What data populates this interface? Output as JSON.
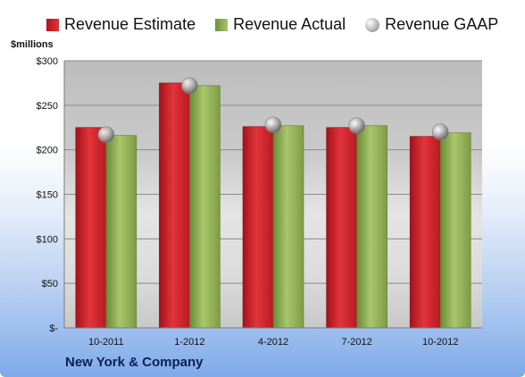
{
  "chart_data": {
    "type": "bar",
    "categories": [
      "10-2011",
      "1-2012",
      "4-2012",
      "7-2012",
      "10-2012"
    ],
    "series": [
      {
        "name": "Revenue Estimate",
        "kind": "bar",
        "color": "#c9222a",
        "values": [
          225,
          275,
          226,
          225,
          215
        ]
      },
      {
        "name": "Revenue Actual",
        "kind": "bar",
        "color": "#8fad50",
        "values": [
          216,
          272,
          227,
          227,
          219
        ]
      },
      {
        "name": "Revenue GAAP",
        "kind": "marker",
        "color": "#a0a0a0",
        "values": [
          217,
          272,
          228,
          227,
          220
        ]
      }
    ],
    "ylabel": "$millions",
    "yticks": [
      "$-",
      "$50",
      "$100",
      "$150",
      "$200",
      "$250",
      "$300"
    ],
    "ylim": [
      0,
      300
    ],
    "grid": true,
    "legend_position": "top"
  },
  "footer": {
    "company": "New York & Company"
  }
}
